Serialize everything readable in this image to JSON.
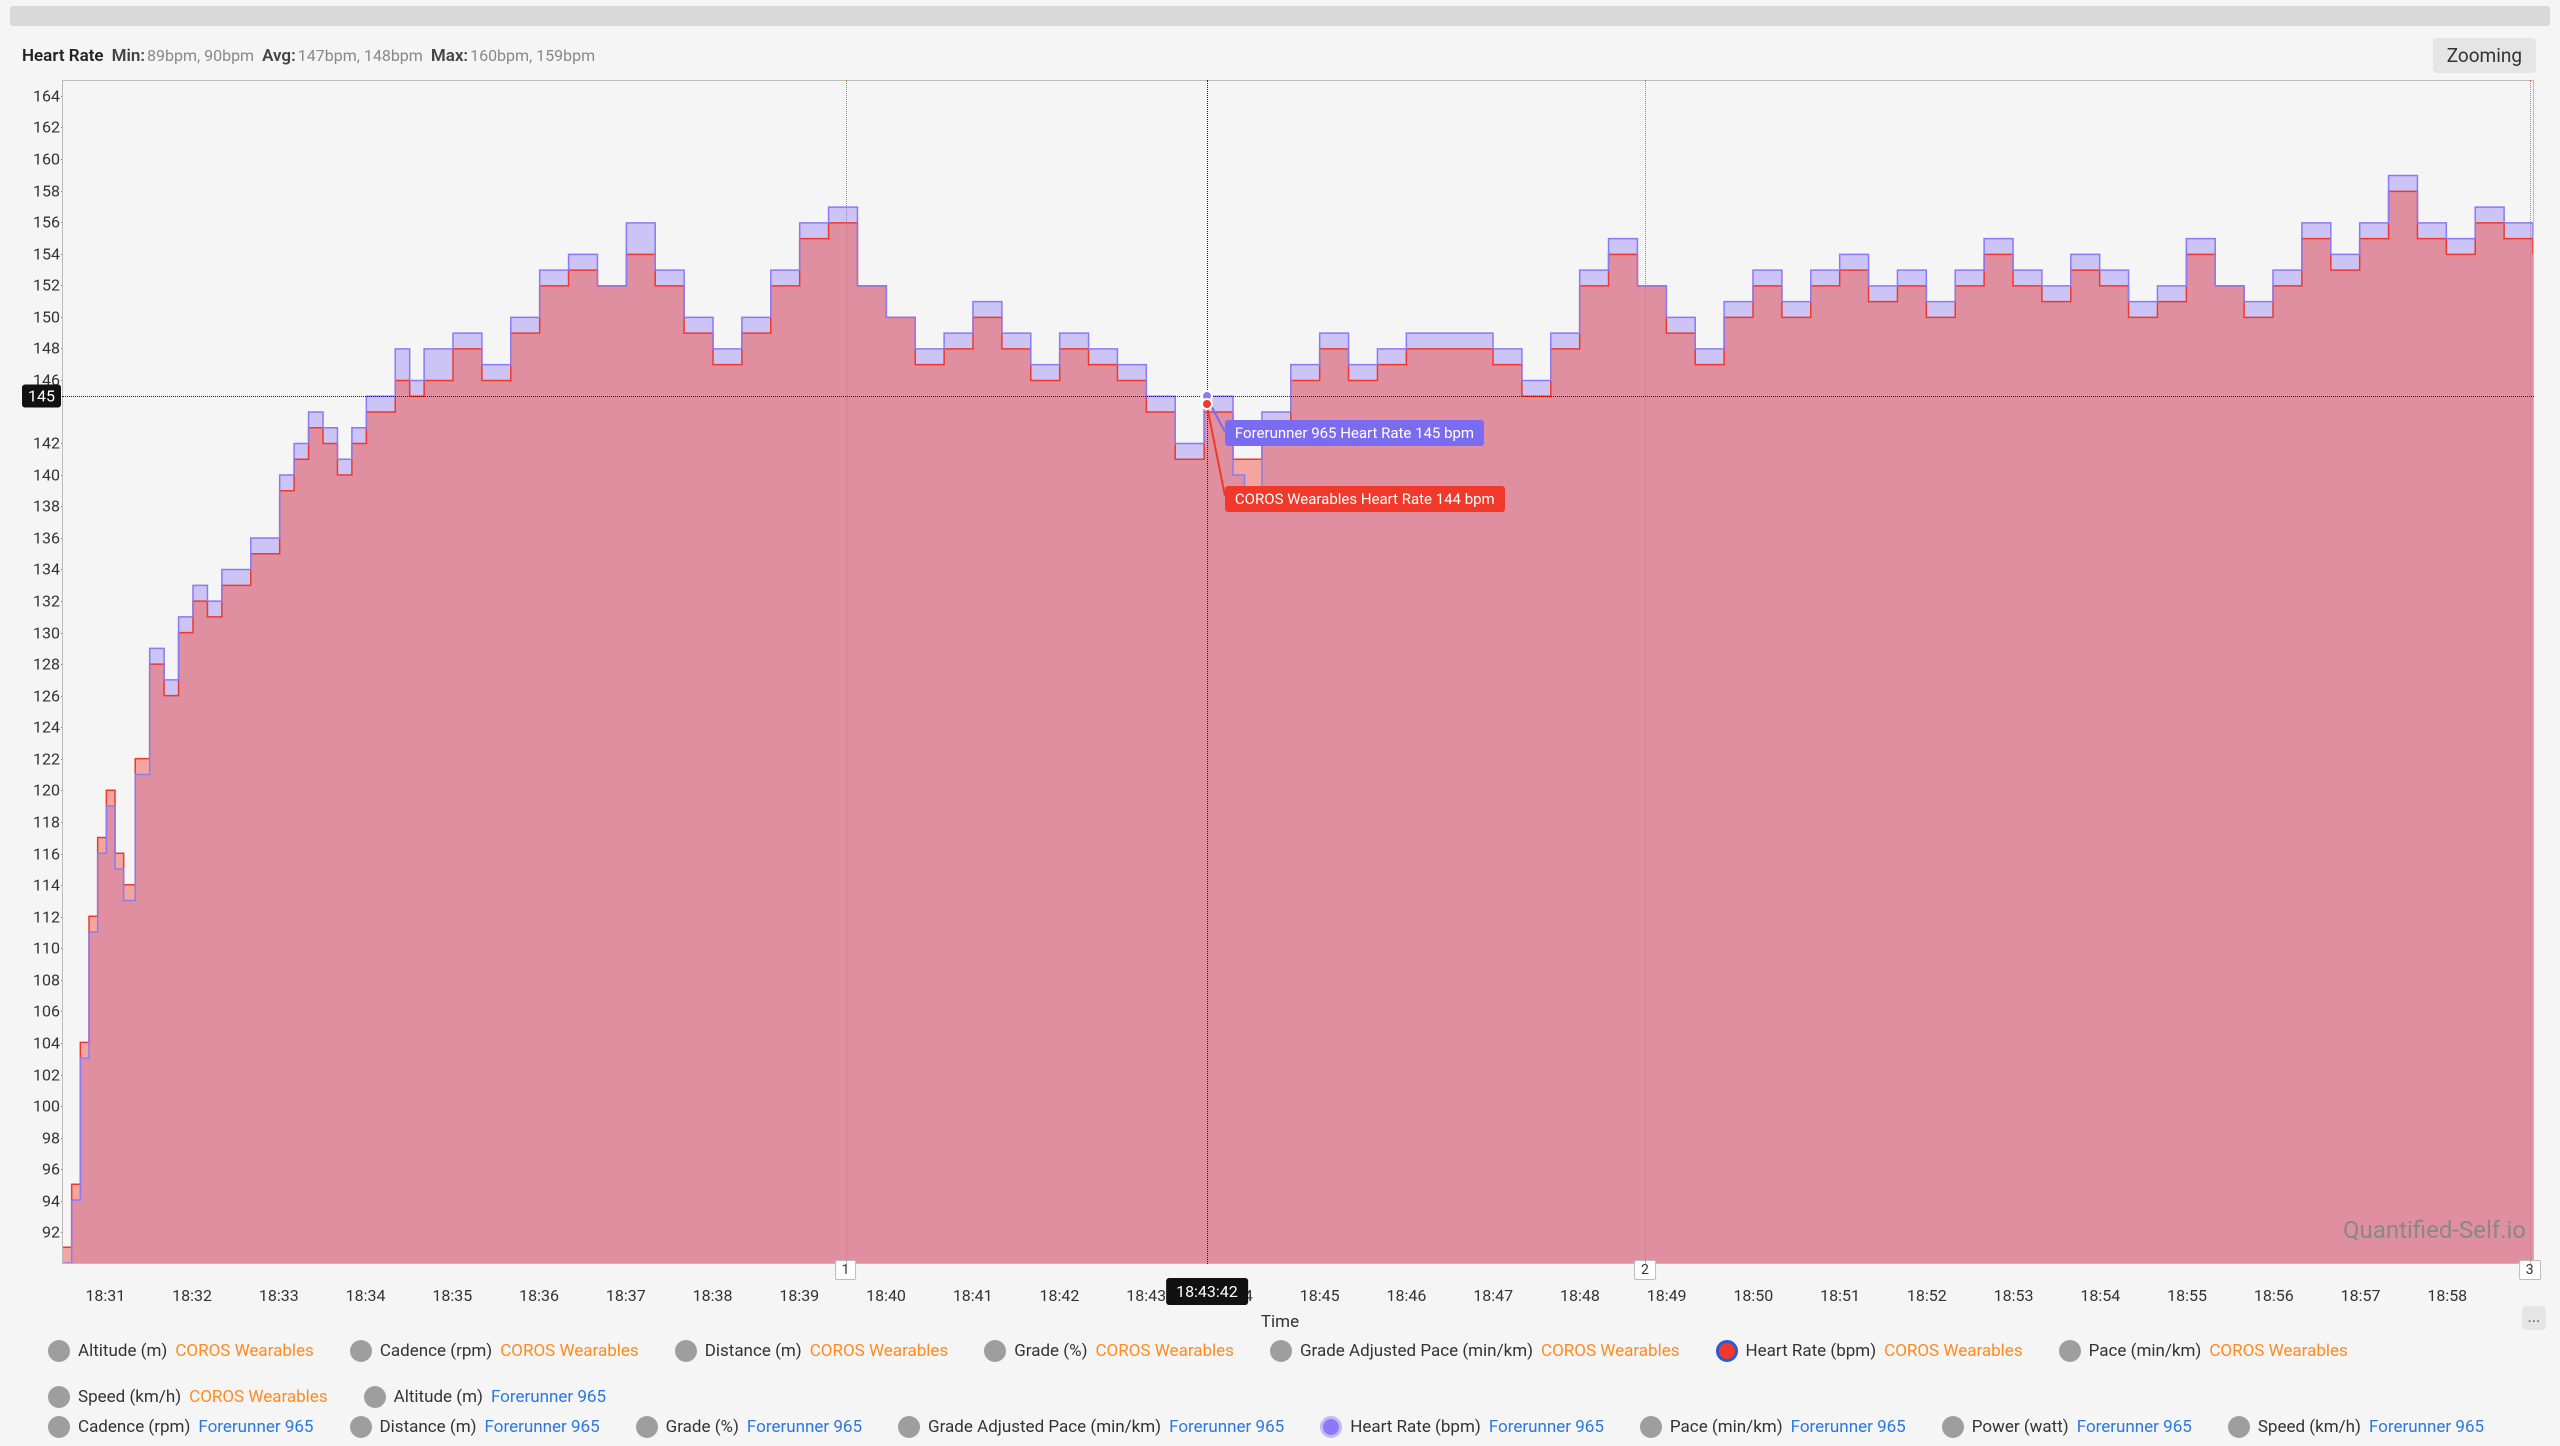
{
  "chart": {
    "type": "area",
    "title_metric": "Heart Rate",
    "stats": {
      "min_label": "Min:",
      "min_values": "89bpm, 90bpm",
      "avg_label": "Avg:",
      "avg_values": "147bpm, 148bpm",
      "max_label": "Max:",
      "max_values": "160bpm, 159bpm"
    },
    "zoom_button": "Zooming",
    "background_color": "#f5f5f5",
    "grid_border_color": "#bcbcbc",
    "watermark": "Quantified-Self.io",
    "ellipsis": "...",
    "x_axis": {
      "title": "Time",
      "domain_min_sec": 66630,
      "domain_max_sec": 68340,
      "tick_step_sec": 60,
      "ticks": [
        "18:31",
        "18:32",
        "18:33",
        "18:34",
        "18:35",
        "18:36",
        "18:37",
        "18:38",
        "18:39",
        "18:40",
        "18:41",
        "18:42",
        "18:43",
        "18:44",
        "18:45",
        "18:46",
        "18:47",
        "18:48",
        "18:49",
        "18:50",
        "18:51",
        "18:52",
        "18:53",
        "18:54",
        "18:55",
        "18:56",
        "18:57",
        "18:58"
      ]
    },
    "y_axis": {
      "ymin": 90,
      "ymax": 165,
      "ticks": [
        92,
        94,
        96,
        98,
        100,
        102,
        104,
        106,
        108,
        110,
        112,
        114,
        116,
        118,
        120,
        122,
        124,
        126,
        128,
        130,
        132,
        134,
        136,
        138,
        140,
        142,
        146,
        148,
        150,
        152,
        154,
        156,
        158,
        160,
        162,
        164
      ]
    },
    "hover": {
      "time_label": "18:43:42",
      "time_sec": 67422,
      "y_value": 145,
      "tooltip1_text": "Forerunner 965 Heart Rate 145 bpm",
      "tooltip1_color": "#7a6cf0",
      "tooltip2_text": "COROS Wearables Heart Rate 144 bpm",
      "tooltip2_color": "#f0392a"
    },
    "laps": [
      {
        "label": "1",
        "time_sec": 67172
      },
      {
        "label": "2",
        "time_sec": 67725
      },
      {
        "label": "3",
        "time_sec": 68337
      }
    ],
    "series": [
      {
        "name": "COROS Wearables",
        "fill_color": "rgba(240,100,90,0.55)",
        "stroke_color": "#f0392a",
        "points": [
          [
            66630,
            91
          ],
          [
            66636,
            95
          ],
          [
            66642,
            104
          ],
          [
            66648,
            112
          ],
          [
            66654,
            117
          ],
          [
            66660,
            120
          ],
          [
            66666,
            116
          ],
          [
            66672,
            114
          ],
          [
            66680,
            122
          ],
          [
            66690,
            128
          ],
          [
            66700,
            126
          ],
          [
            66710,
            130
          ],
          [
            66720,
            132
          ],
          [
            66730,
            131
          ],
          [
            66740,
            133
          ],
          [
            66760,
            135
          ],
          [
            66780,
            139
          ],
          [
            66790,
            141
          ],
          [
            66800,
            143
          ],
          [
            66810,
            142
          ],
          [
            66820,
            140
          ],
          [
            66830,
            142
          ],
          [
            66840,
            144
          ],
          [
            66860,
            146
          ],
          [
            66870,
            145
          ],
          [
            66880,
            146
          ],
          [
            66900,
            148
          ],
          [
            66920,
            146
          ],
          [
            66940,
            149
          ],
          [
            66960,
            152
          ],
          [
            66980,
            153
          ],
          [
            67000,
            152
          ],
          [
            67020,
            154
          ],
          [
            67040,
            152
          ],
          [
            67060,
            149
          ],
          [
            67080,
            147
          ],
          [
            67100,
            149
          ],
          [
            67120,
            152
          ],
          [
            67140,
            155
          ],
          [
            67160,
            156
          ],
          [
            67180,
            152
          ],
          [
            67200,
            150
          ],
          [
            67220,
            147
          ],
          [
            67240,
            148
          ],
          [
            67260,
            150
          ],
          [
            67280,
            148
          ],
          [
            67300,
            146
          ],
          [
            67320,
            148
          ],
          [
            67340,
            147
          ],
          [
            67360,
            146
          ],
          [
            67380,
            144
          ],
          [
            67400,
            141
          ],
          [
            67420,
            144
          ],
          [
            67440,
            141
          ],
          [
            67460,
            143
          ],
          [
            67480,
            146
          ],
          [
            67500,
            148
          ],
          [
            67520,
            146
          ],
          [
            67540,
            147
          ],
          [
            67560,
            148
          ],
          [
            67580,
            148
          ],
          [
            67600,
            148
          ],
          [
            67620,
            147
          ],
          [
            67640,
            145
          ],
          [
            67660,
            148
          ],
          [
            67680,
            152
          ],
          [
            67700,
            154
          ],
          [
            67720,
            152
          ],
          [
            67740,
            149
          ],
          [
            67760,
            147
          ],
          [
            67780,
            150
          ],
          [
            67800,
            152
          ],
          [
            67820,
            150
          ],
          [
            67840,
            152
          ],
          [
            67860,
            153
          ],
          [
            67880,
            151
          ],
          [
            67900,
            152
          ],
          [
            67920,
            150
          ],
          [
            67940,
            152
          ],
          [
            67960,
            154
          ],
          [
            67980,
            152
          ],
          [
            68000,
            151
          ],
          [
            68020,
            153
          ],
          [
            68040,
            152
          ],
          [
            68060,
            150
          ],
          [
            68080,
            151
          ],
          [
            68100,
            154
          ],
          [
            68120,
            152
          ],
          [
            68140,
            150
          ],
          [
            68160,
            152
          ],
          [
            68180,
            155
          ],
          [
            68200,
            153
          ],
          [
            68220,
            155
          ],
          [
            68240,
            158
          ],
          [
            68260,
            155
          ],
          [
            68280,
            154
          ],
          [
            68300,
            156
          ],
          [
            68320,
            155
          ],
          [
            68340,
            154
          ]
        ]
      },
      {
        "name": "Forerunner 965",
        "fill_color": "rgba(139,122,245,0.40)",
        "stroke_color": "#8b7af5",
        "points": [
          [
            66630,
            90
          ],
          [
            66636,
            94
          ],
          [
            66642,
            103
          ],
          [
            66648,
            111
          ],
          [
            66654,
            116
          ],
          [
            66660,
            119
          ],
          [
            66666,
            115
          ],
          [
            66672,
            113
          ],
          [
            66680,
            121
          ],
          [
            66690,
            129
          ],
          [
            66700,
            127
          ],
          [
            66710,
            131
          ],
          [
            66720,
            133
          ],
          [
            66730,
            132
          ],
          [
            66740,
            134
          ],
          [
            66760,
            136
          ],
          [
            66780,
            140
          ],
          [
            66790,
            142
          ],
          [
            66800,
            144
          ],
          [
            66810,
            143
          ],
          [
            66820,
            141
          ],
          [
            66830,
            143
          ],
          [
            66840,
            145
          ],
          [
            66860,
            148
          ],
          [
            66870,
            146
          ],
          [
            66880,
            148
          ],
          [
            66900,
            149
          ],
          [
            66920,
            147
          ],
          [
            66940,
            150
          ],
          [
            66960,
            153
          ],
          [
            66980,
            154
          ],
          [
            67000,
            152
          ],
          [
            67020,
            156
          ],
          [
            67040,
            153
          ],
          [
            67060,
            150
          ],
          [
            67080,
            148
          ],
          [
            67100,
            150
          ],
          [
            67120,
            153
          ],
          [
            67140,
            156
          ],
          [
            67160,
            157
          ],
          [
            67180,
            152
          ],
          [
            67200,
            150
          ],
          [
            67220,
            148
          ],
          [
            67240,
            149
          ],
          [
            67260,
            151
          ],
          [
            67280,
            149
          ],
          [
            67300,
            147
          ],
          [
            67320,
            149
          ],
          [
            67340,
            148
          ],
          [
            67360,
            147
          ],
          [
            67380,
            145
          ],
          [
            67400,
            142
          ],
          [
            67420,
            145
          ],
          [
            67440,
            140
          ],
          [
            67448,
            138
          ],
          [
            67460,
            144
          ],
          [
            67480,
            147
          ],
          [
            67500,
            149
          ],
          [
            67520,
            147
          ],
          [
            67540,
            148
          ],
          [
            67560,
            149
          ],
          [
            67580,
            149
          ],
          [
            67600,
            149
          ],
          [
            67620,
            148
          ],
          [
            67640,
            146
          ],
          [
            67660,
            149
          ],
          [
            67680,
            153
          ],
          [
            67700,
            155
          ],
          [
            67720,
            152
          ],
          [
            67740,
            150
          ],
          [
            67760,
            148
          ],
          [
            67780,
            151
          ],
          [
            67800,
            153
          ],
          [
            67820,
            151
          ],
          [
            67840,
            153
          ],
          [
            67860,
            154
          ],
          [
            67880,
            152
          ],
          [
            67900,
            153
          ],
          [
            67920,
            151
          ],
          [
            67940,
            153
          ],
          [
            67960,
            155
          ],
          [
            67980,
            153
          ],
          [
            68000,
            152
          ],
          [
            68020,
            154
          ],
          [
            68040,
            153
          ],
          [
            68060,
            151
          ],
          [
            68080,
            152
          ],
          [
            68100,
            155
          ],
          [
            68120,
            152
          ],
          [
            68140,
            151
          ],
          [
            68160,
            153
          ],
          [
            68180,
            156
          ],
          [
            68200,
            154
          ],
          [
            68220,
            156
          ],
          [
            68240,
            159
          ],
          [
            68260,
            156
          ],
          [
            68280,
            155
          ],
          [
            68300,
            157
          ],
          [
            68320,
            156
          ],
          [
            68340,
            155
          ]
        ]
      }
    ]
  },
  "legend": {
    "row1": [
      {
        "metric": "Altitude (m)",
        "device": "COROS Wearables",
        "devc": "coros",
        "active": false
      },
      {
        "metric": "Cadence (rpm)",
        "device": "COROS Wearables",
        "devc": "coros",
        "active": false
      },
      {
        "metric": "Distance (m)",
        "device": "COROS Wearables",
        "devc": "coros",
        "active": false
      },
      {
        "metric": "Grade (%)",
        "device": "COROS Wearables",
        "devc": "coros",
        "active": false
      },
      {
        "metric": "Grade Adjusted Pace (min/km)",
        "device": "COROS Wearables",
        "devc": "coros",
        "active": false
      },
      {
        "metric": "Heart Rate (bpm)",
        "device": "COROS Wearables",
        "devc": "coros",
        "active": "red"
      },
      {
        "metric": "Pace (min/km)",
        "device": "COROS Wearables",
        "devc": "coros",
        "active": false
      },
      {
        "metric": "Speed (km/h)",
        "device": "COROS Wearables",
        "devc": "coros",
        "active": false
      },
      {
        "metric": "Altitude (m)",
        "device": "Forerunner 965",
        "devc": "fr",
        "active": false
      }
    ],
    "row2": [
      {
        "metric": "Cadence (rpm)",
        "device": "Forerunner 965",
        "devc": "fr",
        "active": false
      },
      {
        "metric": "Distance (m)",
        "device": "Forerunner 965",
        "devc": "fr",
        "active": false
      },
      {
        "metric": "Grade (%)",
        "device": "Forerunner 965",
        "devc": "fr",
        "active": false
      },
      {
        "metric": "Grade Adjusted Pace (min/km)",
        "device": "Forerunner 965",
        "devc": "fr",
        "active": false
      },
      {
        "metric": "Heart Rate (bpm)",
        "device": "Forerunner 965",
        "devc": "fr",
        "active": "purple"
      },
      {
        "metric": "Pace (min/km)",
        "device": "Forerunner 965",
        "devc": "fr",
        "active": false
      },
      {
        "metric": "Power (watt)",
        "device": "Forerunner 965",
        "devc": "fr",
        "active": false
      },
      {
        "metric": "Speed (km/h)",
        "device": "Forerunner 965",
        "devc": "fr",
        "active": false
      }
    ]
  }
}
